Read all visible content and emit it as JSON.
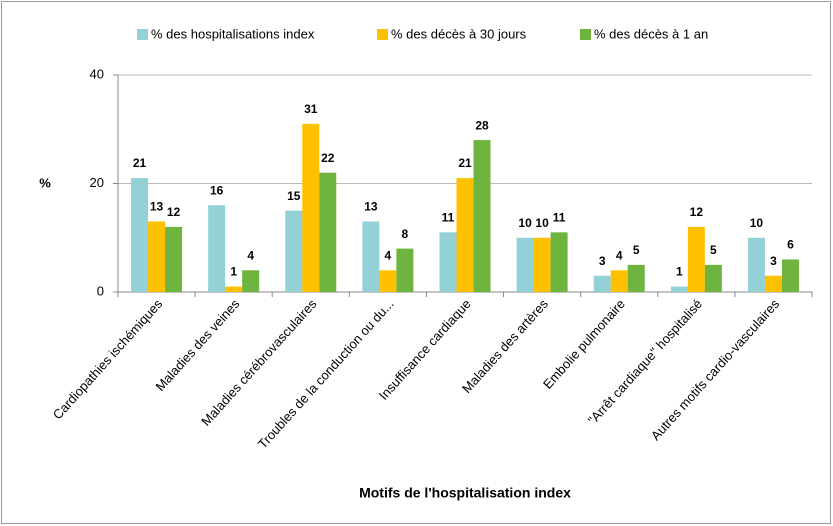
{
  "chart_data": {
    "type": "bar",
    "x_label": "Motifs de l'hospitalisation index",
    "y_label": "%",
    "categories": [
      "Cardiopathies ischémiques",
      "Maladies des veines",
      "Maladies cérébrovasculaires",
      "Troubles de la conduction ou du...",
      "Insuffisance cardiaque",
      "Maladies des artères",
      "Embolie pulmonaire",
      "\"Arrêt cardiaque\" hospitalisé",
      "Autres motifs cardio-vasculaires"
    ],
    "series": [
      {
        "name": "% des hospitalisations index",
        "color": "#93d1d6",
        "values": [
          21,
          16,
          15,
          13,
          11,
          10,
          3,
          1,
          10
        ]
      },
      {
        "name": "% des décès à 30 jours",
        "color": "#ffc000",
        "values": [
          13,
          1,
          31,
          4,
          21,
          10,
          4,
          12,
          3
        ]
      },
      {
        "name": "% des décès à 1 an",
        "color": "#6fb43f",
        "values": [
          12,
          4,
          22,
          8,
          28,
          11,
          5,
          5,
          6
        ]
      }
    ],
    "ylim": [
      0,
      40
    ],
    "yticks": [
      0,
      20,
      40
    ],
    "grid": true,
    "legend": "top"
  }
}
